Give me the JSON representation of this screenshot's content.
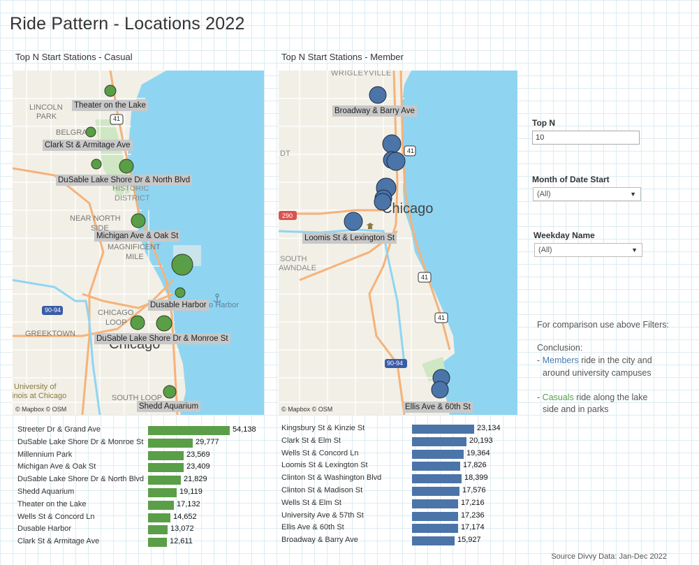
{
  "title": "Ride Pattern - Locations 2022",
  "colors": {
    "casual": "#5a9e47",
    "member": "#4b74a8",
    "water": "#8fd5f2",
    "land": "#f2efe6",
    "road": "#f5b27a",
    "street": "#ffffff"
  },
  "casual": {
    "title": "Top N Start Stations - Casual",
    "credit": "© Mapbox © OSM",
    "map_text": [
      "LINCOLN",
      "PARK",
      "BELGRA",
      "HISTORIC",
      "DISTRICT",
      "NEAR NORTH",
      "SIDE",
      "MAGNIFICENT",
      "MILE",
      "CHICAGO",
      "LOOP",
      "GREEKTOWN",
      "Chicago",
      "University of",
      "inois at Chicago",
      "SOUTH LOOP",
      "go Harbor",
      "90-94",
      "41"
    ],
    "map_labels": [
      "Theater on the Lake",
      "Clark St & Armitage Ave",
      "DuSable Lake Shore Dr & North Blvd",
      "Michigan Ave & Oak St",
      "Dusable Harbor",
      "DuSable Lake Shore Dr & Monroe St",
      "Shedd Aquarium"
    ],
    "bars": [
      {
        "station": "Streeter Dr & Grand Ave",
        "value": 54138,
        "label": "54,138"
      },
      {
        "station": "DuSable Lake Shore Dr & Monroe St",
        "value": 29777,
        "label": "29,777"
      },
      {
        "station": "Millennium Park",
        "value": 23569,
        "label": "23,569"
      },
      {
        "station": "Michigan Ave & Oak St",
        "value": 23409,
        "label": "23,409"
      },
      {
        "station": "DuSable Lake Shore Dr & North Blvd",
        "value": 21829,
        "label": "21,829"
      },
      {
        "station": "Shedd Aquarium",
        "value": 19119,
        "label": "19,119"
      },
      {
        "station": "Theater on the Lake",
        "value": 17132,
        "label": "17,132"
      },
      {
        "station": "Wells St & Concord Ln",
        "value": 14652,
        "label": "14,652"
      },
      {
        "station": "Dusable Harbor",
        "value": 13072,
        "label": "13,072"
      },
      {
        "station": "Clark St & Armitage Ave",
        "value": 12611,
        "label": "12,611"
      }
    ]
  },
  "member": {
    "title": "Top N Start Stations - Member",
    "credit": "© Mapbox © OSM",
    "map_text": [
      "WRIGLEYVILLE",
      "DT",
      "Chicago",
      "SOUTH",
      "AWNDALE",
      "290",
      "41",
      "41",
      "41",
      "90-94"
    ],
    "map_labels": [
      "Broadway & Barry Ave",
      "Loomis St & Lexington St",
      "Ellis Ave & 60th St"
    ],
    "bars": [
      {
        "station": "Kingsbury St & Kinzie St",
        "value": 23134,
        "label": "23,134"
      },
      {
        "station": "Clark St & Elm St",
        "value": 20193,
        "label": "20,193"
      },
      {
        "station": "Wells St & Concord Ln",
        "value": 19364,
        "label": "19,364"
      },
      {
        "station": "Loomis St & Lexington St",
        "value": 17826,
        "label": "17,826"
      },
      {
        "station": "Clinton St & Washington Blvd",
        "value": 18399,
        "label": "18,399"
      },
      {
        "station": "Clinton St & Madison St",
        "value": 17576,
        "label": "17,576"
      },
      {
        "station": "Wells St & Elm St",
        "value": 17216,
        "label": "17,216"
      },
      {
        "station": "University Ave & 57th St",
        "value": 17236,
        "label": "17,236"
      },
      {
        "station": "Ellis Ave & 60th St",
        "value": 17174,
        "label": "17,174"
      },
      {
        "station": "Broadway & Barry Ave",
        "value": 15927,
        "label": "15,927"
      }
    ]
  },
  "filters": {
    "top_n": {
      "label": "Top N",
      "value": "10"
    },
    "month": {
      "label": "Month of Date Start",
      "value": "(All)"
    },
    "weekday": {
      "label": "Weekday Name",
      "value": "(All)"
    }
  },
  "notes": {
    "line1": "For comparison use above Filters:",
    "line2": "Conclusion:",
    "members_prefix": "- ",
    "members_word": "Members",
    "members_rest": " ride in the city  and",
    "members_line2": "around university campuses",
    "casuals_prefix": "- ",
    "casuals_word": "Casuals",
    "casuals_rest": " ride along the lake",
    "casuals_line2": "side and in parks"
  },
  "source": "Source Divvy Data: Jan-Dec 2022"
}
